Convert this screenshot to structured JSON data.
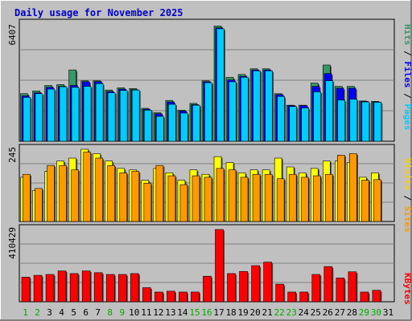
{
  "chart_data": [
    {
      "type": "bar",
      "title": "Daily usage for November 2025",
      "ylabel": "Pages / Files / Hits",
      "ylabel_parts": [
        "Pages",
        "Files",
        "Hits"
      ],
      "max_label": "6407",
      "ylim": [
        0,
        6407
      ],
      "categories": [
        "1",
        "2",
        "3",
        "4",
        "5",
        "6",
        "7",
        "8",
        "9",
        "10",
        "11",
        "12",
        "13",
        "14",
        "15",
        "16",
        "17",
        "18",
        "19",
        "20",
        "21",
        "22",
        "23",
        "24",
        "25",
        "26",
        "27",
        "28",
        "29",
        "30",
        "31"
      ],
      "weekend_days": [
        "1",
        "2",
        "8",
        "9",
        "15",
        "16",
        "22",
        "23",
        "29",
        "30"
      ],
      "series": [
        {
          "name": "Hits",
          "color": "#339966",
          "values": [
            2600,
            2750,
            3050,
            3100,
            3900,
            3300,
            3300,
            2800,
            2920,
            2880,
            1800,
            1560,
            2230,
            1700,
            2070,
            3300,
            6300,
            3490,
            3650,
            3960,
            3960,
            2600,
            1970,
            1970,
            3180,
            4170,
            3000,
            3000,
            2200,
            2180,
            0
          ]
        },
        {
          "name": "Files",
          "color": "#0000ff",
          "values": [
            2480,
            2650,
            2950,
            3000,
            3050,
            3250,
            3260,
            2720,
            2850,
            2820,
            1750,
            1500,
            2150,
            1650,
            2000,
            3250,
            6200,
            3350,
            3550,
            3900,
            3900,
            2550,
            1950,
            1950,
            3000,
            3700,
            2900,
            2900,
            2180,
            2150,
            0
          ]
        },
        {
          "name": "Pages",
          "color": "#00ccff",
          "values": [
            2400,
            2600,
            2850,
            2980,
            2950,
            3000,
            3150,
            2650,
            2780,
            2800,
            1700,
            1360,
            2020,
            1540,
            1970,
            3200,
            6150,
            3250,
            3500,
            3850,
            3850,
            2450,
            1900,
            1820,
            2700,
            3310,
            2250,
            2300,
            2150,
            2130,
            0
          ]
        }
      ]
    },
    {
      "type": "bar",
      "ylabel": "Sites / Visits",
      "ylabel_parts": [
        "Sites",
        "Visits"
      ],
      "max_label": "245",
      "ylim": [
        0,
        245
      ],
      "categories": [
        "1",
        "2",
        "3",
        "4",
        "5",
        "6",
        "7",
        "8",
        "9",
        "10",
        "11",
        "12",
        "13",
        "14",
        "15",
        "16",
        "17",
        "18",
        "19",
        "20",
        "21",
        "22",
        "23",
        "24",
        "25",
        "26",
        "27",
        "28",
        "29",
        "30",
        "31"
      ],
      "series": [
        {
          "name": "Visits",
          "color": "#ffff00",
          "values": [
            150,
            105,
            170,
            205,
            215,
            245,
            230,
            205,
            180,
            175,
            140,
            180,
            165,
            140,
            175,
            160,
            220,
            200,
            165,
            175,
            175,
            215,
            185,
            165,
            180,
            205,
            205,
            200,
            150,
            165,
            0
          ]
        },
        {
          "name": "Sites",
          "color": "#ff9900",
          "values": [
            160,
            112,
            190,
            190,
            175,
            235,
            215,
            190,
            165,
            170,
            130,
            190,
            155,
            125,
            155,
            150,
            180,
            175,
            150,
            160,
            160,
            145,
            160,
            150,
            155,
            160,
            225,
            230,
            140,
            142,
            0
          ]
        }
      ]
    },
    {
      "type": "bar",
      "ylabel": "KBytes",
      "max_label": "410429",
      "ylim": [
        0,
        410429
      ],
      "categories": [
        "1",
        "2",
        "3",
        "4",
        "5",
        "6",
        "7",
        "8",
        "9",
        "10",
        "11",
        "12",
        "13",
        "14",
        "15",
        "16",
        "17",
        "18",
        "19",
        "20",
        "21",
        "22",
        "23",
        "24",
        "25",
        "26",
        "27",
        "28",
        "29",
        "30",
        "31"
      ],
      "series": [
        {
          "name": "KBytes",
          "color": "#ff0000",
          "values": [
            140000,
            150000,
            155000,
            175000,
            160000,
            175000,
            165000,
            155000,
            155000,
            160000,
            80000,
            55000,
            60000,
            55000,
            55000,
            145000,
            410429,
            160000,
            172000,
            205000,
            225000,
            100000,
            55000,
            55000,
            155000,
            200000,
            135000,
            170000,
            55000,
            65000,
            0
          ]
        }
      ]
    }
  ]
}
